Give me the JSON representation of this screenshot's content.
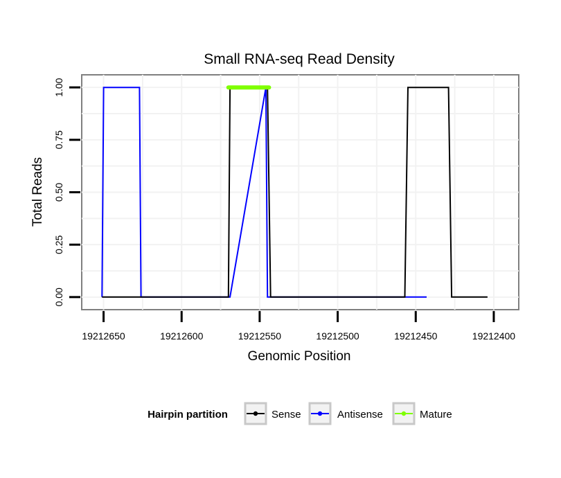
{
  "chart_data": {
    "type": "line",
    "title": "Small RNA-seq Read Density",
    "xlabel": "Genomic Position",
    "ylabel": "Total Reads",
    "x_reversed": true,
    "xlim": [
      19212664,
      19212384
    ],
    "ylim": [
      -0.06,
      1.06
    ],
    "x_ticks": [
      19212650,
      19212600,
      19212550,
      19212500,
      19212450,
      19212400
    ],
    "x_tick_labels": [
      "19212650",
      "19212600",
      "19212550",
      "19212500",
      "19212450",
      "19212400"
    ],
    "y_ticks": [
      0,
      0.25,
      0.5,
      0.75,
      1
    ],
    "y_tick_labels": [
      "0.00",
      "0.25",
      "0.50",
      "0.75",
      "1.00"
    ],
    "grid": true,
    "legend": {
      "title": "Hairpin partition",
      "position": "bottom",
      "entries": [
        "Sense",
        "Antisense",
        "Mature"
      ]
    },
    "series": [
      {
        "name": "Antisense",
        "color": "#0000ff",
        "x": [
          19212651,
          19212650,
          19212627,
          19212626,
          19212569,
          19212546,
          19212545,
          19212456,
          19212443
        ],
        "y": [
          0,
          1,
          1,
          0,
          0,
          1,
          0,
          0,
          0
        ]
      },
      {
        "name": "Sense",
        "color": "#000000",
        "x": [
          19212651,
          19212570,
          19212569,
          19212545,
          19212543,
          19212457,
          19212455,
          19212429,
          19212427,
          19212404
        ],
        "y": [
          0,
          0,
          1,
          1,
          0,
          0,
          1,
          1,
          0,
          0
        ]
      },
      {
        "name": "Mature",
        "color": "#7fff00",
        "x": [
          19212570,
          19212544
        ],
        "y": [
          1,
          1
        ]
      }
    ]
  }
}
